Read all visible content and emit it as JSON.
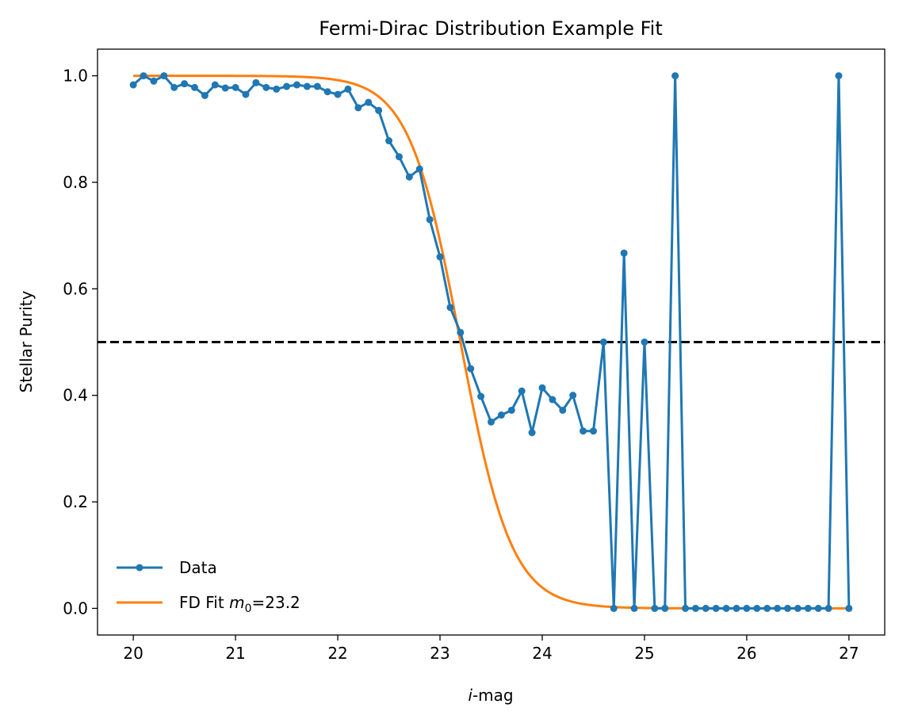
{
  "chart_data": {
    "type": "line",
    "title": "Fermi-Dirac Distribution Example Fit",
    "xlabel_italic": "i",
    "xlabel_rest": "-mag",
    "ylabel": "Stellar Purity",
    "xlim": [
      19.65,
      27.35
    ],
    "ylim": [
      -0.05,
      1.05
    ],
    "xticks": [
      "20",
      "21",
      "22",
      "23",
      "24",
      "25",
      "26",
      "27"
    ],
    "yticks": [
      "0.0",
      "0.2",
      "0.4",
      "0.6",
      "0.8",
      "1.0"
    ],
    "threshold": 0.5,
    "colors": {
      "data": "#1f77b4",
      "fit": "#ff7f0e",
      "threshold": "#000000"
    },
    "legend": {
      "position": "lower-left",
      "data_label": "Data",
      "fit_label_prefix": "FD Fit ",
      "fit_label_m": "m",
      "fit_label_sub": "0",
      "fit_label_suffix": "=23.2"
    },
    "fit": {
      "m0": 23.2,
      "T": 0.25
    },
    "series": [
      {
        "name": "Data",
        "x": [
          20.0,
          20.1,
          20.2,
          20.3,
          20.4,
          20.5,
          20.6,
          20.7,
          20.8,
          20.9,
          21.0,
          21.1,
          21.2,
          21.3,
          21.4,
          21.5,
          21.6,
          21.7,
          21.8,
          21.9,
          22.0,
          22.1,
          22.2,
          22.3,
          22.4,
          22.5,
          22.6,
          22.7,
          22.8,
          22.9,
          23.0,
          23.1,
          23.2,
          23.3,
          23.4,
          23.5,
          23.6,
          23.7,
          23.8,
          23.9,
          24.0,
          24.1,
          24.2,
          24.3,
          24.4,
          24.5,
          24.6,
          24.7,
          24.8,
          24.9,
          25.0,
          25.1,
          25.2,
          25.3,
          25.4,
          25.5,
          25.6,
          25.7,
          25.8,
          25.9,
          26.0,
          26.1,
          26.2,
          26.3,
          26.4,
          26.5,
          26.6,
          26.7,
          26.8,
          26.9,
          27.0
        ],
        "y": [
          0.983,
          1.0,
          0.99,
          1.0,
          0.978,
          0.985,
          0.978,
          0.963,
          0.983,
          0.977,
          0.978,
          0.965,
          0.987,
          0.978,
          0.975,
          0.98,
          0.983,
          0.98,
          0.98,
          0.97,
          0.965,
          0.975,
          0.94,
          0.95,
          0.935,
          0.878,
          0.848,
          0.81,
          0.825,
          0.73,
          0.66,
          0.565,
          0.518,
          0.45,
          0.398,
          0.35,
          0.363,
          0.372,
          0.408,
          0.33,
          0.414,
          0.392,
          0.372,
          0.4,
          0.333,
          0.333,
          0.5,
          0.0,
          0.667,
          0.0,
          0.5,
          0.0,
          0.0,
          1.0,
          0.0,
          0.0,
          0.0,
          0.0,
          0.0,
          0.0,
          0.0,
          0.0,
          0.0,
          0.0,
          0.0,
          0.0,
          0.0,
          0.0,
          0.0,
          1.0,
          0.0
        ]
      },
      {
        "name": "FD Fit",
        "function": "1/(exp((x-m0)/T)+1)"
      }
    ]
  }
}
